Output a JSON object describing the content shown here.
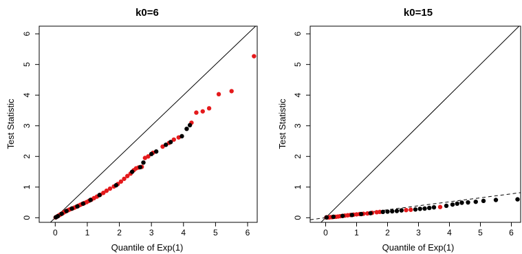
{
  "chart_data": [
    {
      "type": "scatter",
      "title": "k0=6",
      "xlabel": "Quantile of Exp(1)",
      "ylabel": "Test Statistic",
      "xlim": [
        -0.5,
        6.3
      ],
      "ylim": [
        -0.15,
        6.25
      ],
      "xticks": [
        "0",
        "1",
        "2",
        "3",
        "4",
        "5",
        "6"
      ],
      "yticks": [
        "0",
        "1",
        "2",
        "3",
        "4",
        "5",
        "6"
      ],
      "grid": false,
      "colors": {
        "red": "#e41a1c",
        "black": "#000000",
        "line": "#000000"
      },
      "reference_lines": [
        {
          "slope": 1,
          "intercept": 0,
          "style": "solid"
        }
      ],
      "series": [
        {
          "color": "red",
          "points": [
            [
              0.01,
              0.01
            ],
            [
              0.03,
              0.02
            ],
            [
              0.06,
              0.04
            ],
            [
              0.09,
              0.06
            ],
            [
              0.12,
              0.08
            ],
            [
              0.15,
              0.1
            ],
            [
              0.18,
              0.12
            ],
            [
              0.22,
              0.14
            ],
            [
              0.25,
              0.16
            ],
            [
              0.29,
              0.19
            ],
            [
              0.33,
              0.21
            ],
            [
              0.37,
              0.23
            ],
            [
              0.41,
              0.25
            ],
            [
              0.45,
              0.27
            ],
            [
              0.5,
              0.29
            ],
            [
              0.55,
              0.31
            ],
            [
              0.6,
              0.33
            ],
            [
              0.66,
              0.36
            ],
            [
              0.72,
              0.39
            ],
            [
              0.78,
              0.42
            ],
            [
              0.84,
              0.45
            ],
            [
              0.91,
              0.48
            ],
            [
              0.98,
              0.51
            ],
            [
              1.05,
              0.55
            ],
            [
              1.13,
              0.59
            ],
            [
              1.21,
              0.64
            ],
            [
              1.3,
              0.69
            ],
            [
              1.4,
              0.75
            ],
            [
              1.5,
              0.81
            ],
            [
              1.6,
              0.88
            ],
            [
              1.71,
              0.95
            ],
            [
              1.83,
              1.02
            ],
            [
              1.95,
              1.1
            ],
            [
              2.05,
              1.18
            ],
            [
              2.15,
              1.27
            ],
            [
              2.25,
              1.36
            ],
            [
              2.35,
              1.44
            ],
            [
              2.45,
              1.55
            ],
            [
              2.52,
              1.61
            ],
            [
              2.6,
              1.64
            ],
            [
              2.7,
              1.66
            ],
            [
              2.8,
              1.95
            ],
            [
              2.9,
              2.0
            ],
            [
              3.05,
              2.12
            ],
            [
              3.35,
              2.32
            ],
            [
              3.55,
              2.44
            ],
            [
              3.7,
              2.55
            ],
            [
              3.85,
              2.62
            ],
            [
              4.25,
              3.1
            ],
            [
              4.4,
              3.43
            ],
            [
              4.6,
              3.47
            ],
            [
              4.8,
              3.57
            ],
            [
              5.1,
              4.03
            ],
            [
              5.5,
              4.13
            ],
            [
              6.2,
              5.27
            ]
          ]
        },
        {
          "color": "black",
          "points": [
            [
              0.02,
              0.015
            ],
            [
              0.08,
              0.05
            ],
            [
              0.2,
              0.13
            ],
            [
              0.35,
              0.22
            ],
            [
              0.52,
              0.3
            ],
            [
              0.69,
              0.37
            ],
            [
              0.87,
              0.46
            ],
            [
              1.1,
              0.58
            ],
            [
              1.38,
              0.74
            ],
            [
              1.9,
              1.06
            ],
            [
              2.4,
              1.5
            ],
            [
              2.65,
              1.65
            ],
            [
              2.75,
              1.8
            ],
            [
              3.0,
              2.08
            ],
            [
              3.15,
              2.16
            ],
            [
              3.45,
              2.38
            ],
            [
              3.6,
              2.47
            ],
            [
              3.95,
              2.66
            ],
            [
              4.1,
              2.9
            ],
            [
              4.2,
              3.02
            ]
          ]
        }
      ]
    },
    {
      "type": "scatter",
      "title": "k0=15",
      "xlabel": "Quantile of Exp(1)",
      "ylabel": "Test Statistic",
      "xlim": [
        -0.5,
        6.3
      ],
      "ylim": [
        -0.15,
        6.25
      ],
      "xticks": [
        "0",
        "1",
        "2",
        "3",
        "4",
        "5",
        "6"
      ],
      "yticks": [
        "0",
        "1",
        "2",
        "3",
        "4",
        "5",
        "6"
      ],
      "grid": false,
      "colors": {
        "red": "#e41a1c",
        "black": "#000000",
        "line": "#000000"
      },
      "reference_lines": [
        {
          "slope": 1,
          "intercept": 0,
          "style": "solid"
        },
        {
          "slope": 0.13,
          "intercept": 0,
          "style": "dashed"
        }
      ],
      "series": [
        {
          "color": "red",
          "points": [
            [
              0.02,
              0.01
            ],
            [
              0.06,
              0.01
            ],
            [
              0.11,
              0.01
            ],
            [
              0.16,
              0.02
            ],
            [
              0.21,
              0.02
            ],
            [
              0.27,
              0.03
            ],
            [
              0.33,
              0.03
            ],
            [
              0.4,
              0.04
            ],
            [
              0.47,
              0.05
            ],
            [
              0.54,
              0.06
            ],
            [
              0.62,
              0.07
            ],
            [
              0.71,
              0.08
            ],
            [
              0.8,
              0.09
            ],
            [
              0.9,
              0.1
            ],
            [
              1.0,
              0.11
            ],
            [
              1.1,
              0.12
            ],
            [
              1.22,
              0.13
            ],
            [
              1.35,
              0.14
            ],
            [
              1.5,
              0.16
            ],
            [
              1.65,
              0.18
            ],
            [
              1.75,
              0.19
            ],
            [
              2.6,
              0.25
            ],
            [
              2.75,
              0.26
            ],
            [
              3.7,
              0.35
            ]
          ]
        },
        {
          "color": "black",
          "points": [
            [
              0.03,
              0.01
            ],
            [
              0.25,
              0.03
            ],
            [
              0.55,
              0.06
            ],
            [
              0.85,
              0.09
            ],
            [
              1.15,
              0.12
            ],
            [
              1.45,
              0.15
            ],
            [
              1.85,
              0.19
            ],
            [
              2.0,
              0.2
            ],
            [
              2.15,
              0.21
            ],
            [
              2.3,
              0.22
            ],
            [
              2.45,
              0.24
            ],
            [
              2.9,
              0.27
            ],
            [
              3.05,
              0.29
            ],
            [
              3.2,
              0.3
            ],
            [
              3.35,
              0.32
            ],
            [
              3.5,
              0.34
            ],
            [
              3.9,
              0.39
            ],
            [
              4.1,
              0.43
            ],
            [
              4.25,
              0.46
            ],
            [
              4.4,
              0.49
            ],
            [
              4.6,
              0.5
            ],
            [
              4.85,
              0.52
            ],
            [
              5.1,
              0.55
            ],
            [
              5.5,
              0.58
            ],
            [
              6.2,
              0.6
            ]
          ]
        }
      ]
    }
  ]
}
